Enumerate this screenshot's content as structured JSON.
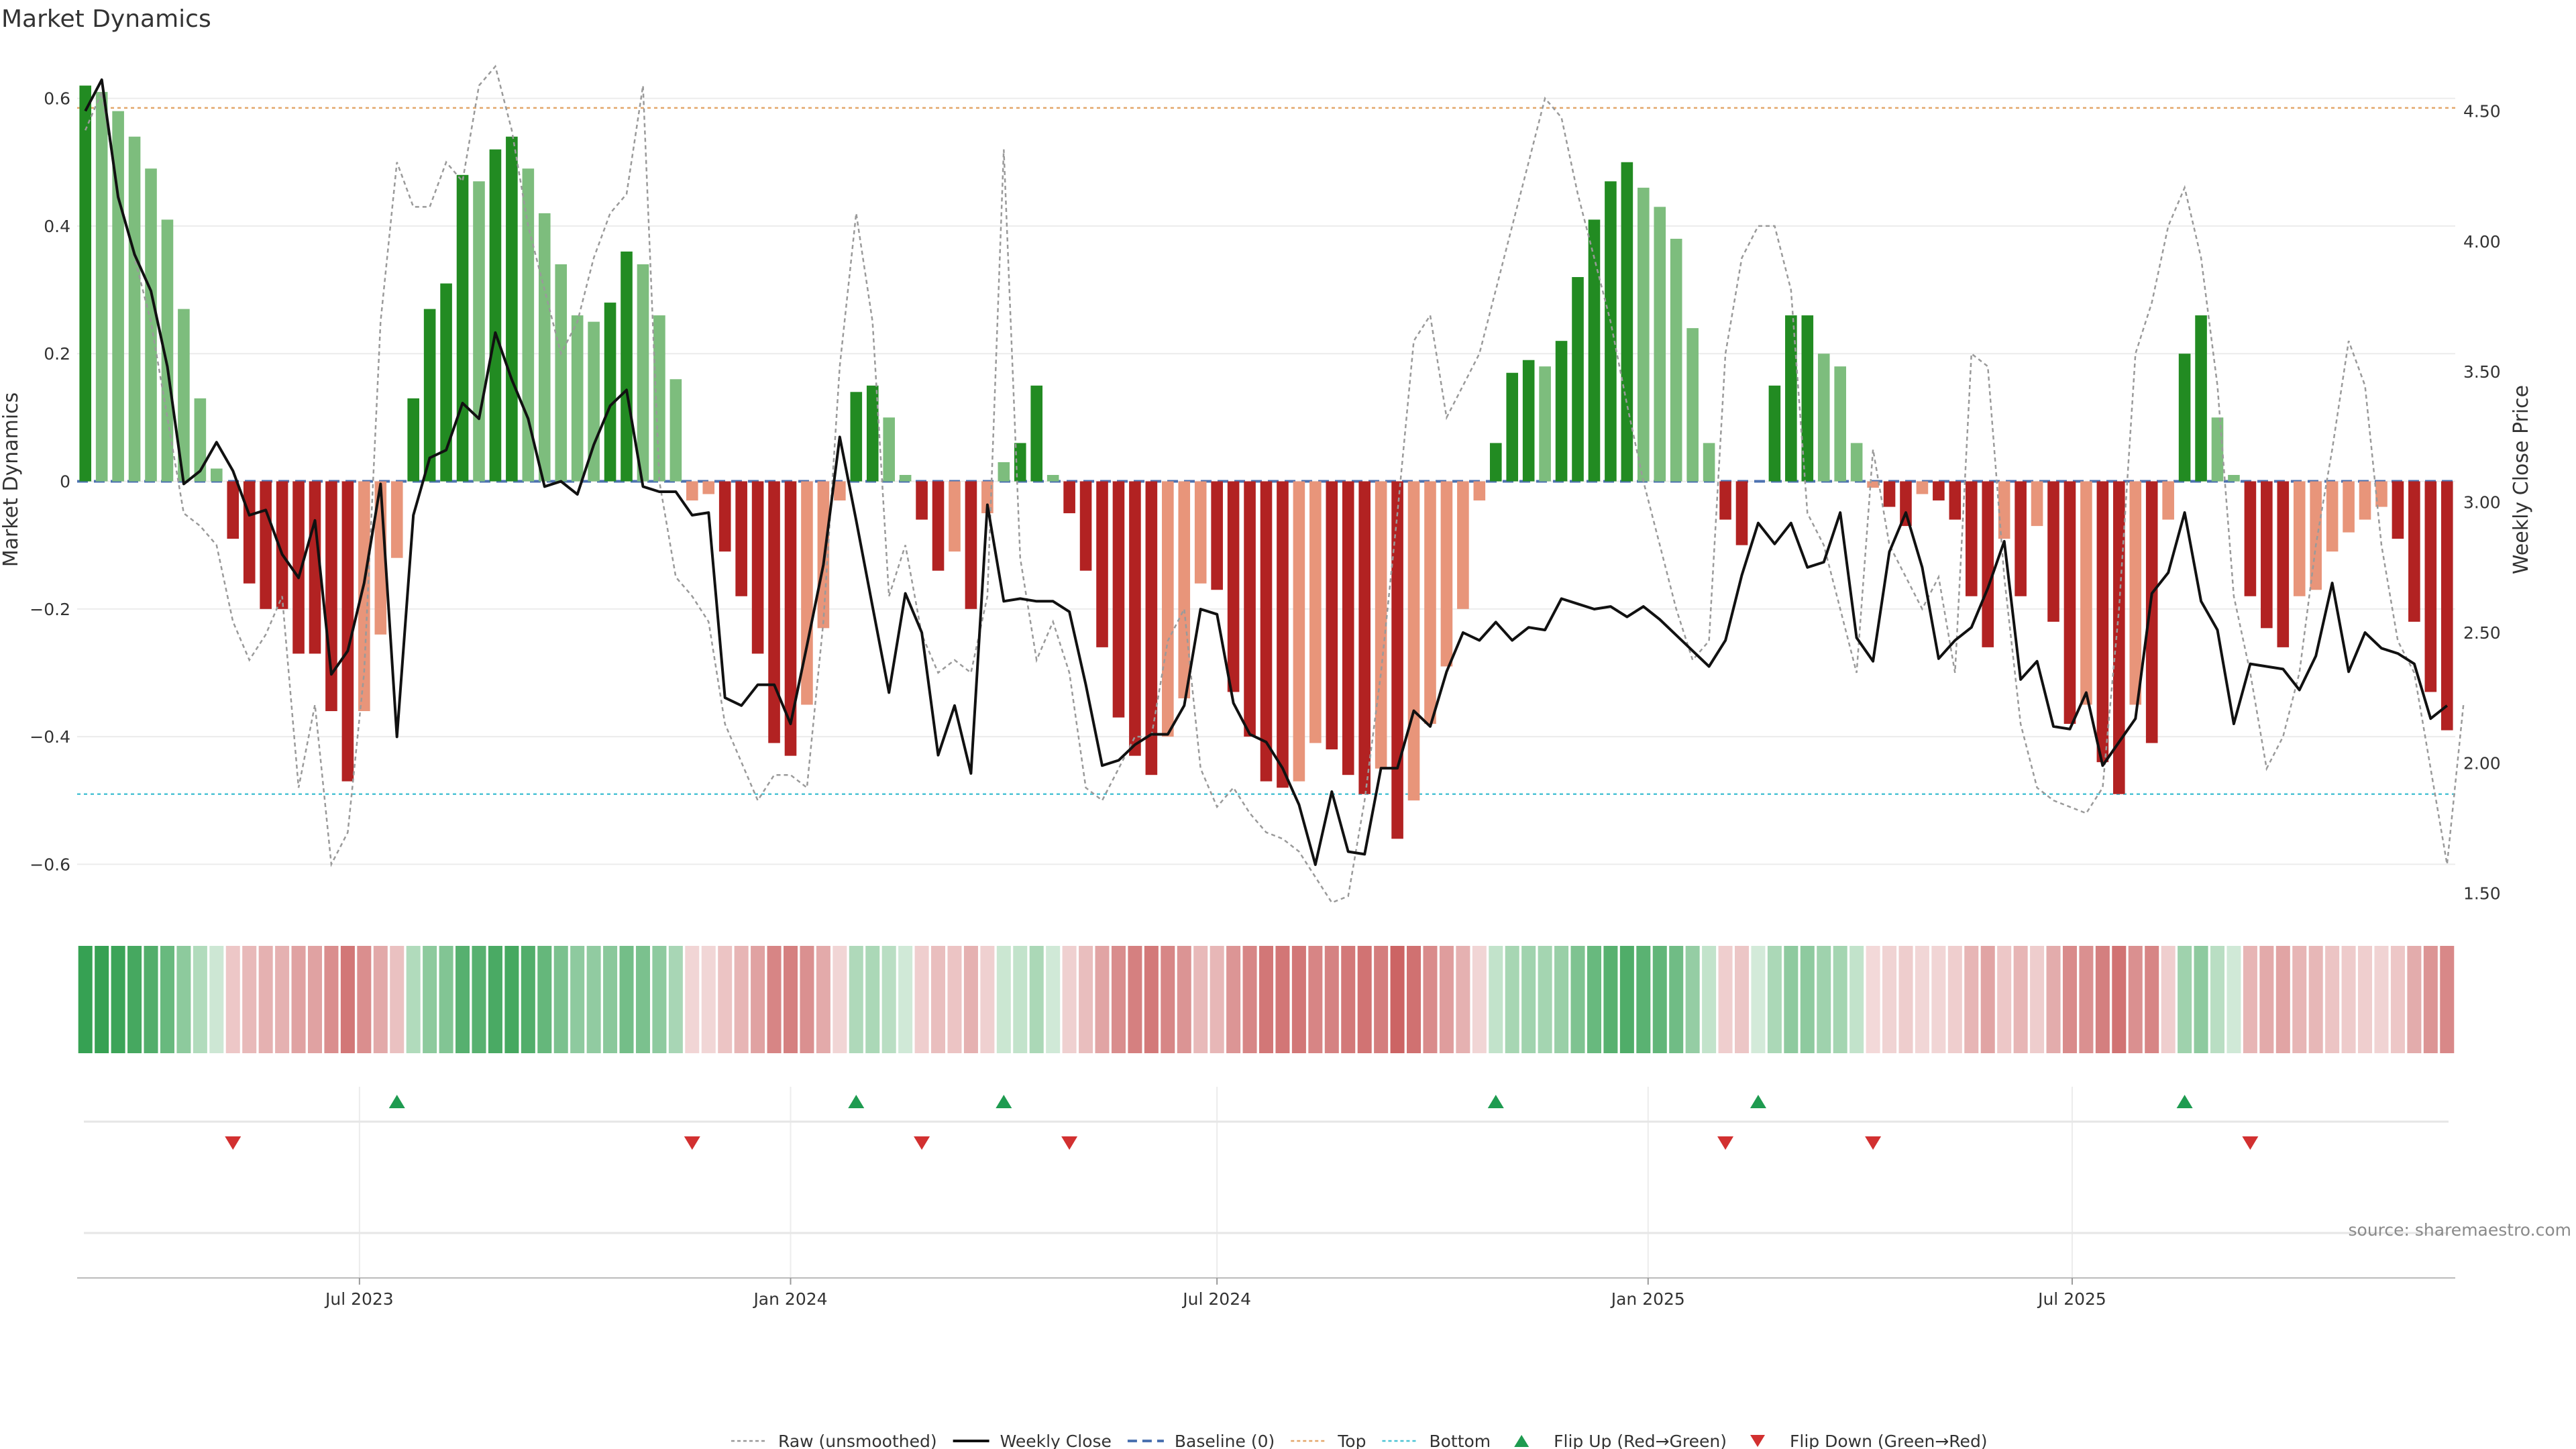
{
  "title": "Market Dynamics",
  "source_note": "source: sharemaestro.com",
  "chart_data": {
    "type": "bar",
    "y_left": {
      "label": "Market Dynamics",
      "ticks": [
        0.6,
        0.4,
        0.2,
        0,
        -0.2,
        -0.4,
        -0.6
      ],
      "tick_labels": [
        "0.6",
        "0.4",
        "0.2",
        "0",
        "−0.2",
        "−0.4",
        "−0.6"
      ],
      "range": [
        -0.67,
        0.67
      ]
    },
    "y_right": {
      "label": "Weekly Close Price",
      "ticks": [
        4.5,
        4.0,
        3.5,
        3.0,
        2.5,
        2.0,
        1.5
      ],
      "tick_labels": [
        "4.50",
        "4.00",
        "3.50",
        "3.00",
        "2.50",
        "2.00",
        "1.50"
      ],
      "range": [
        1.44,
        4.72
      ]
    },
    "x_axis": {
      "start_date": "2023-03-06",
      "ticks": [
        "2023-07-01",
        "2024-01-01",
        "2024-07-01",
        "2025-01-01",
        "2025-07-01"
      ],
      "tick_labels": [
        "Jul 2023",
        "Jan 2024",
        "Jul 2024",
        "Jan 2025",
        "Jul 2025"
      ]
    },
    "top_threshold": 0.585,
    "bottom_threshold": -0.49,
    "baseline": 0,
    "series": [
      {
        "name": "Raw (unsmoothed)",
        "style": "dotted-gray",
        "values": [
          0.55,
          0.61,
          0.45,
          0.35,
          0.25,
          0.1,
          -0.05,
          -0.07,
          -0.1,
          -0.22,
          -0.28,
          -0.24,
          -0.18,
          -0.48,
          -0.35,
          -0.6,
          -0.55,
          -0.3,
          0.25,
          0.5,
          0.43,
          0.43,
          0.5,
          0.47,
          0.62,
          0.65,
          0.55,
          0.4,
          0.3,
          0.2,
          0.25,
          0.35,
          0.42,
          0.45,
          0.62,
          0.0,
          -0.15,
          -0.18,
          -0.22,
          -0.38,
          -0.44,
          -0.5,
          -0.46,
          -0.46,
          -0.48,
          -0.22,
          0.18,
          0.42,
          0.25,
          -0.18,
          -0.1,
          -0.24,
          -0.3,
          -0.28,
          -0.3,
          -0.18,
          0.52,
          -0.12,
          -0.28,
          -0.22,
          -0.3,
          -0.48,
          -0.5,
          -0.45,
          -0.4,
          -0.4,
          -0.25,
          -0.2,
          -0.45,
          -0.51,
          -0.48,
          -0.52,
          -0.55,
          -0.56,
          -0.58,
          -0.62,
          -0.66,
          -0.65,
          -0.5,
          -0.3,
          -0.05,
          0.22,
          0.26,
          0.1,
          0.15,
          0.2,
          0.3,
          0.4,
          0.5,
          0.6,
          0.57,
          0.45,
          0.35,
          0.25,
          0.12,
          0.0,
          -0.1,
          -0.2,
          -0.28,
          -0.25,
          0.2,
          0.35,
          0.4,
          0.4,
          0.3,
          -0.05,
          -0.1,
          -0.2,
          -0.3,
          0.05,
          -0.1,
          -0.15,
          -0.2,
          -0.15,
          -0.3,
          0.2,
          0.18,
          -0.15,
          -0.38,
          -0.48,
          -0.5,
          -0.51,
          -0.52,
          -0.48,
          -0.2,
          0.2,
          0.28,
          0.4,
          0.46,
          0.35,
          0.15,
          -0.18,
          -0.3,
          -0.45,
          -0.4,
          -0.3,
          -0.1,
          0.05,
          0.22,
          0.15,
          -0.1,
          -0.25,
          -0.3,
          -0.45,
          -0.6,
          -0.35
        ]
      },
      {
        "name": "Weekly Close",
        "style": "solid-black",
        "values": [
          4.5,
          4.62,
          4.17,
          3.95,
          3.81,
          3.52,
          3.07,
          3.12,
          3.23,
          3.12,
          2.95,
          2.97,
          2.8,
          2.71,
          2.93,
          2.34,
          2.43,
          2.69,
          3.07,
          2.1,
          2.95,
          3.17,
          3.2,
          3.38,
          3.32,
          3.65,
          3.47,
          3.32,
          3.06,
          3.08,
          3.03,
          3.22,
          3.37,
          3.43,
          3.06,
          3.04,
          3.04,
          2.95,
          2.96,
          2.25,
          2.22,
          2.3,
          2.3,
          2.15,
          2.45,
          2.76,
          3.25,
          2.93,
          2.6,
          2.27,
          2.65,
          2.5,
          2.03,
          2.22,
          1.96,
          2.99,
          2.62,
          2.63,
          2.62,
          2.62,
          2.58,
          2.3,
          1.99,
          2.01,
          2.07,
          2.11,
          2.11,
          2.22,
          2.59,
          2.57,
          2.23,
          2.11,
          2.08,
          1.98,
          1.84,
          1.61,
          1.89,
          1.66,
          1.65,
          1.98,
          1.98,
          2.2,
          2.14,
          2.35,
          2.5,
          2.47,
          2.54,
          2.47,
          2.52,
          2.51,
          2.63,
          2.61,
          2.59,
          2.6,
          2.56,
          2.6,
          2.55,
          2.49,
          2.43,
          2.37,
          2.47,
          2.72,
          2.92,
          2.84,
          2.92,
          2.75,
          2.77,
          2.96,
          2.48,
          2.39,
          2.81,
          2.96,
          2.75,
          2.4,
          2.47,
          2.52,
          2.67,
          2.85,
          2.32,
          2.39,
          2.14,
          2.13,
          2.27,
          1.99,
          2.08,
          2.17,
          2.65,
          2.73,
          2.96,
          2.62,
          2.51,
          2.15,
          2.38,
          2.37,
          2.36,
          2.28,
          2.41,
          2.69,
          2.35,
          2.5,
          2.44,
          2.42,
          2.38,
          2.17,
          2.22
        ]
      },
      {
        "name": "Baseline (0)",
        "style": "dashed-blue"
      },
      {
        "name": "Top",
        "style": "dotted-orange"
      },
      {
        "name": "Bottom",
        "style": "dotted-cyan"
      },
      {
        "name": "Flip Up (Red→Green)",
        "marker": "triangle-up",
        "indices": [
          19,
          47,
          56,
          86,
          102,
          128
        ]
      },
      {
        "name": "Flip Down (Green→Red)",
        "marker": "triangle-down",
        "indices": [
          9,
          37,
          51,
          60,
          100,
          109,
          132
        ]
      }
    ],
    "bars": {
      "name": "Market Dynamics",
      "values": [
        0.62,
        0.61,
        0.58,
        0.54,
        0.49,
        0.41,
        0.27,
        0.13,
        0.02,
        -0.09,
        -0.16,
        -0.2,
        -0.2,
        -0.27,
        -0.27,
        -0.36,
        -0.47,
        -0.36,
        -0.24,
        -0.12,
        0.13,
        0.27,
        0.31,
        0.48,
        0.47,
        0.52,
        0.54,
        0.49,
        0.42,
        0.34,
        0.26,
        0.25,
        0.28,
        0.36,
        0.34,
        0.26,
        0.16,
        -0.03,
        -0.02,
        -0.11,
        -0.18,
        -0.27,
        -0.41,
        -0.43,
        -0.35,
        -0.23,
        -0.03,
        0.14,
        0.15,
        0.1,
        0.01,
        -0.06,
        -0.14,
        -0.11,
        -0.2,
        -0.05,
        0.03,
        0.06,
        0.15,
        0.01,
        -0.05,
        -0.14,
        -0.26,
        -0.37,
        -0.43,
        -0.46,
        -0.4,
        -0.34,
        -0.16,
        -0.17,
        -0.33,
        -0.4,
        -0.47,
        -0.48,
        -0.47,
        -0.41,
        -0.42,
        -0.46,
        -0.49,
        -0.45,
        -0.56,
        -0.5,
        -0.38,
        -0.29,
        -0.2,
        -0.03,
        0.06,
        0.17,
        0.19,
        0.18,
        0.22,
        0.32,
        0.41,
        0.47,
        0.5,
        0.46,
        0.43,
        0.38,
        0.24,
        0.06,
        -0.06,
        -0.1,
        0.0,
        0.15,
        0.26,
        0.26,
        0.2,
        0.18,
        0.06,
        -0.01,
        -0.04,
        -0.07,
        -0.02,
        -0.03,
        -0.06,
        -0.18,
        -0.26,
        -0.09,
        -0.18,
        -0.07,
        -0.22,
        -0.38,
        -0.35,
        -0.44,
        -0.49,
        -0.35,
        -0.41,
        -0.06,
        0.2,
        0.26,
        0.1,
        0.01,
        -0.18,
        -0.23,
        -0.26,
        -0.18,
        -0.17,
        -0.11,
        -0.08,
        -0.06,
        -0.04,
        -0.09,
        -0.22,
        -0.33,
        -0.39
      ]
    },
    "legend": {
      "position": "bottom-center",
      "entries": [
        "Raw (unsmoothed)",
        "Weekly Close",
        "Baseline (0)",
        "Top",
        "Bottom",
        "Flip Up (Red→Green)",
        "Flip Down (Green→Red)"
      ]
    },
    "grid": "horizontal",
    "colors": {
      "bull_strong": "#228b22",
      "bull_weak": "#7dbd7d",
      "bear_strong": "#b22222",
      "bear_weak": "#e8957a",
      "price": "#111111",
      "raw": "#9a9a9a",
      "baseline": "#4c72b0",
      "top": "#e3a76b",
      "bottom": "#4dc3d4",
      "flip_up": "#1e9b50",
      "flip_down": "#d23030"
    }
  }
}
